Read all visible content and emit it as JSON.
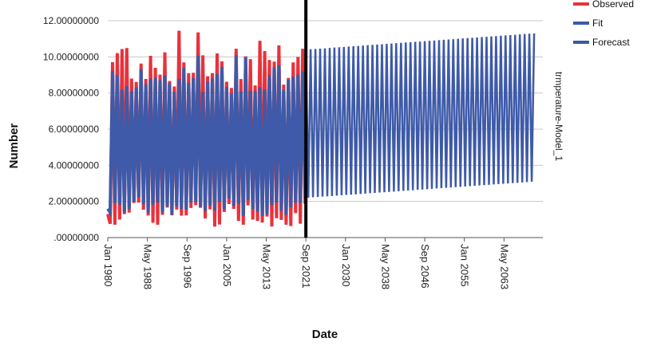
{
  "chart_data": {
    "type": "line",
    "xlabel": "Date",
    "ylabel": "Number",
    "panel_label": "trmperature-Model_1",
    "ylim": [
      0,
      12
    ],
    "y_ticks": [
      ".00000000",
      "2.00000000",
      "4.00000000",
      "6.00000000",
      "8.00000000",
      "10.00000000",
      "12.00000000"
    ],
    "x_ticks": [
      "Jan 1980",
      "May 1988",
      "Sep 1996",
      "Jan 2005",
      "May 2013",
      "Sep 2021",
      "Jan 2030",
      "May 2038",
      "Sep 2046",
      "Jan 2055",
      "May 2063"
    ],
    "forecast_start": "Sep 2021",
    "colors": {
      "observed": "#e8323c",
      "fit": "#3e5aa8",
      "forecast": "#3e5aa8",
      "divider": "#000000",
      "grid": "#c8c8c8"
    },
    "series": [
      {
        "name": "Observed",
        "start": "1980-01",
        "end": "2021-09",
        "period_months": 12,
        "max_range": [
          8.2,
          11.6
        ],
        "min_range": [
          0.6,
          2.0
        ]
      },
      {
        "name": "Fit",
        "start": "1980-01",
        "end": "2021-09",
        "period_months": 12,
        "max_range": [
          8.0,
          10.4
        ],
        "min_range": [
          1.2,
          2.0
        ]
      },
      {
        "name": "Forecast",
        "start": "2021-09",
        "end": "2069-09",
        "period_months": 12,
        "max_start": 10.4,
        "max_end": 11.3,
        "min_start": 2.2,
        "min_end": 3.1
      }
    ]
  },
  "legend": {
    "items": [
      {
        "label": "Observed",
        "color": "#e8323c"
      },
      {
        "label": "Fit",
        "color": "#3e5aa8"
      },
      {
        "label": "Forecast",
        "color": "#3e5aa8"
      }
    ]
  }
}
